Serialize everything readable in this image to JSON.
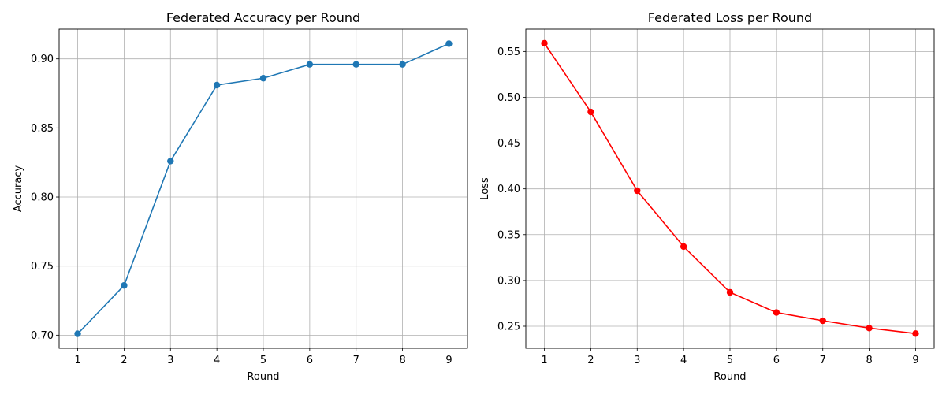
{
  "chart_data": [
    {
      "type": "line",
      "title": "Federated Accuracy per Round",
      "xlabel": "Round",
      "ylabel": "Accuracy",
      "x": [
        1,
        2,
        3,
        4,
        5,
        6,
        7,
        8,
        9
      ],
      "xticks": [
        "1",
        "2",
        "3",
        "4",
        "5",
        "6",
        "7",
        "8",
        "9"
      ],
      "xlim": [
        0.6,
        9.4
      ],
      "ylim": [
        0.6905,
        0.9215
      ],
      "yticks": [
        0.7,
        0.75,
        0.8,
        0.85,
        0.9
      ],
      "ytick_labels": [
        "0.70",
        "0.75",
        "0.80",
        "0.85",
        "0.90"
      ],
      "grid": true,
      "series": [
        {
          "values": [
            0.701,
            0.736,
            0.826,
            0.881,
            0.886,
            0.896,
            0.896,
            0.896,
            0.911
          ],
          "color": "#1f77b4",
          "marker": "circle"
        }
      ]
    },
    {
      "type": "line",
      "title": "Federated Loss per Round",
      "xlabel": "Round",
      "ylabel": "Loss",
      "x": [
        1,
        2,
        3,
        4,
        5,
        6,
        7,
        8,
        9
      ],
      "xticks": [
        "1",
        "2",
        "3",
        "4",
        "5",
        "6",
        "7",
        "8",
        "9"
      ],
      "xlim": [
        0.6,
        9.4
      ],
      "ylim": [
        0.2259,
        0.5744
      ],
      "yticks": [
        0.25,
        0.3,
        0.35,
        0.4,
        0.45,
        0.5,
        0.55
      ],
      "ytick_labels": [
        "0.25",
        "0.30",
        "0.35",
        "0.40",
        "0.45",
        "0.50",
        "0.55"
      ],
      "grid": true,
      "series": [
        {
          "values": [
            0.559,
            0.484,
            0.398,
            0.337,
            0.287,
            0.265,
            0.256,
            0.248,
            0.242
          ],
          "color": "#ff0000",
          "marker": "circle"
        }
      ]
    }
  ]
}
